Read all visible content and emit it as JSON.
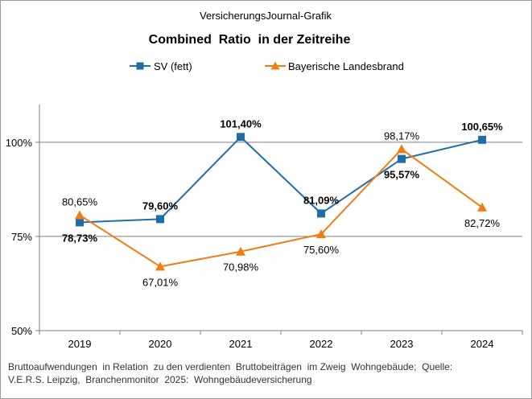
{
  "header": {
    "supertitle": "VersicherungsJournal-Grafik"
  },
  "colors": {
    "sv": "#1f6ea7",
    "landesbrand": "#f07d14",
    "grid": "#7f7f7f",
    "axis": "#7f7f7f"
  },
  "chart_data": {
    "type": "line",
    "title": "Combined  Ratio  in der Zeitreihe",
    "xlabel": "",
    "ylabel": "",
    "categories": [
      "2019",
      "2020",
      "2021",
      "2022",
      "2023",
      "2024"
    ],
    "ylim": [
      50,
      110
    ],
    "yticks": [
      50,
      75,
      100
    ],
    "ytick_labels": [
      "50%",
      "75%",
      "100%"
    ],
    "grid": "horizontal",
    "legend_position": "top",
    "series": [
      {
        "name": "SV (fett)",
        "marker": "square",
        "color": "#1f6ea7",
        "bold_labels": true,
        "values": [
          78.73,
          79.6,
          101.4,
          81.09,
          95.57,
          100.65
        ],
        "labels": [
          "78,73%",
          "79,60%",
          "101,40%",
          "81,09%",
          "95,57%",
          "100,65%"
        ]
      },
      {
        "name": "Bayerische Landesbrand",
        "marker": "triangle",
        "color": "#f07d14",
        "bold_labels": false,
        "values": [
          80.65,
          67.01,
          70.98,
          75.6,
          98.17,
          82.72
        ],
        "labels": [
          "80,65%",
          "67,01%",
          "70,98%",
          "75,60%",
          "98,17%",
          "82,72%"
        ]
      }
    ]
  },
  "footnote": {
    "line1": "Bruttoaufwendungen  in Relation  zu den verdienten  Bruttobeiträgen  im Zweig  Wohngebäude;  Quelle:",
    "line2": "V.E.R.S. Leipzig,  Branchenmonitor  2025:  Wohngebäudeversicherung"
  }
}
